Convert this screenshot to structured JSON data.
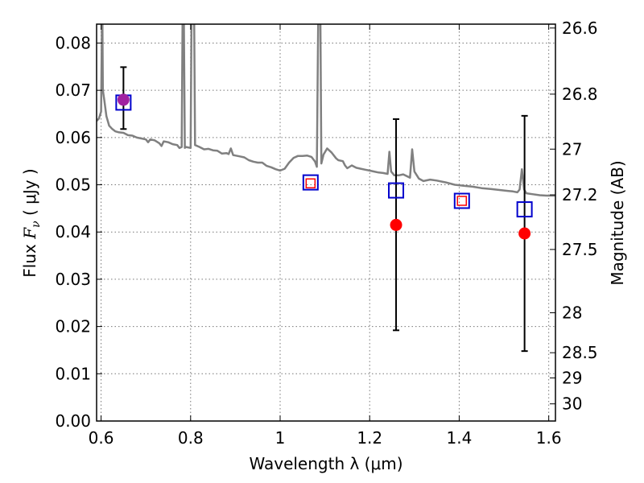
{
  "chart_data": {
    "type": "scatter",
    "xlabel": "Wavelength  λ (μm)",
    "ylabel_prefix": "Flux  ",
    "ylabel_symbol": "F",
    "ylabel_subscript": "ν",
    "ylabel_suffix": "  ( μJy )",
    "y2label": "Magnitude (AB)",
    "xlim": [
      0.59,
      1.615
    ],
    "ylim": [
      0.0,
      0.084
    ],
    "grid": true,
    "x_ticks": [
      0.6,
      0.8,
      1.0,
      1.2,
      1.4,
      1.6
    ],
    "x_tick_labels": [
      "0.6",
      "0.8",
      "1",
      "1.2",
      "1.4",
      "1.6"
    ],
    "y_ticks": [
      0.0,
      0.01,
      0.02,
      0.03,
      0.04,
      0.05,
      0.06,
      0.07,
      0.08
    ],
    "y_tick_labels": [
      "0.00",
      "0.01",
      "0.02",
      "0.03",
      "0.04",
      "0.05",
      "0.06",
      "0.07",
      "0.08"
    ],
    "mag_ticks": [
      26.6,
      26.8,
      27,
      27.2,
      27.5,
      28,
      28.5,
      29,
      30
    ],
    "mag_tick_labels": [
      "26.6",
      "26.8",
      "27",
      "27.2",
      "27.5",
      "28",
      "28.5",
      "29",
      "30"
    ],
    "colors": {
      "model": "#808080",
      "observed": "#ff0000",
      "model_photometry": "#0000cc",
      "errorbar": "#000000",
      "overlap": "#a020a0",
      "grid": "#777777"
    },
    "series": [
      {
        "kind": "line",
        "points": [
          [
            0.59,
            0.0635
          ],
          [
            0.595,
            0.064
          ],
          [
            0.6,
            0.0655
          ],
          [
            0.602,
            0.085
          ],
          [
            0.603,
            0.085
          ],
          [
            0.604,
            0.07
          ],
          [
            0.607,
            0.068
          ],
          [
            0.612,
            0.0645
          ],
          [
            0.618,
            0.0625
          ],
          [
            0.625,
            0.0618
          ],
          [
            0.632,
            0.0613
          ],
          [
            0.64,
            0.0611
          ],
          [
            0.65,
            0.061
          ],
          [
            0.66,
            0.0605
          ],
          [
            0.67,
            0.0604
          ],
          [
            0.68,
            0.06
          ],
          [
            0.69,
            0.0598
          ],
          [
            0.7,
            0.0596
          ],
          [
            0.705,
            0.059
          ],
          [
            0.71,
            0.0596
          ],
          [
            0.72,
            0.0594
          ],
          [
            0.73,
            0.0588
          ],
          [
            0.735,
            0.0582
          ],
          [
            0.74,
            0.0592
          ],
          [
            0.75,
            0.059
          ],
          [
            0.76,
            0.0586
          ],
          [
            0.77,
            0.0584
          ],
          [
            0.775,
            0.0578
          ],
          [
            0.78,
            0.058
          ],
          [
            0.782,
            0.085
          ],
          [
            0.785,
            0.085
          ],
          [
            0.787,
            0.0578
          ],
          [
            0.79,
            0.058
          ],
          [
            0.8,
            0.0578
          ],
          [
            0.802,
            0.085
          ],
          [
            0.808,
            0.085
          ],
          [
            0.81,
            0.0584
          ],
          [
            0.82,
            0.058
          ],
          [
            0.83,
            0.0575
          ],
          [
            0.84,
            0.0576
          ],
          [
            0.85,
            0.0573
          ],
          [
            0.86,
            0.0572
          ],
          [
            0.87,
            0.0566
          ],
          [
            0.88,
            0.0567
          ],
          [
            0.885,
            0.0565
          ],
          [
            0.89,
            0.0577
          ],
          [
            0.895,
            0.0563
          ],
          [
            0.9,
            0.0562
          ],
          [
            0.91,
            0.056
          ],
          [
            0.92,
            0.0558
          ],
          [
            0.93,
            0.0552
          ],
          [
            0.94,
            0.0549
          ],
          [
            0.95,
            0.0547
          ],
          [
            0.96,
            0.0547
          ],
          [
            0.97,
            0.054
          ],
          [
            0.98,
            0.0537
          ],
          [
            0.99,
            0.0533
          ],
          [
            1.0,
            0.053
          ],
          [
            1.01,
            0.0534
          ],
          [
            1.02,
            0.0547
          ],
          [
            1.03,
            0.0557
          ],
          [
            1.04,
            0.0561
          ],
          [
            1.05,
            0.0561
          ],
          [
            1.06,
            0.0562
          ],
          [
            1.07,
            0.0559
          ],
          [
            1.078,
            0.0549
          ],
          [
            1.082,
            0.0538
          ],
          [
            1.085,
            0.085
          ],
          [
            1.09,
            0.085
          ],
          [
            1.092,
            0.0545
          ],
          [
            1.097,
            0.0564
          ],
          [
            1.105,
            0.0577
          ],
          [
            1.115,
            0.0568
          ],
          [
            1.125,
            0.0556
          ],
          [
            1.13,
            0.0552
          ],
          [
            1.14,
            0.055
          ],
          [
            1.145,
            0.0541
          ],
          [
            1.15,
            0.0535
          ],
          [
            1.16,
            0.0541
          ],
          [
            1.17,
            0.0536
          ],
          [
            1.18,
            0.0534
          ],
          [
            1.19,
            0.0532
          ],
          [
            1.2,
            0.053
          ],
          [
            1.21,
            0.0528
          ],
          [
            1.22,
            0.0526
          ],
          [
            1.23,
            0.0525
          ],
          [
            1.24,
            0.0523
          ],
          [
            1.244,
            0.057
          ],
          [
            1.248,
            0.0528
          ],
          [
            1.255,
            0.052
          ],
          [
            1.265,
            0.052
          ],
          [
            1.275,
            0.0522
          ],
          [
            1.29,
            0.0515
          ],
          [
            1.295,
            0.0575
          ],
          [
            1.3,
            0.0528
          ],
          [
            1.31,
            0.0513
          ],
          [
            1.32,
            0.0508
          ],
          [
            1.335,
            0.0511
          ],
          [
            1.35,
            0.0509
          ],
          [
            1.37,
            0.0505
          ],
          [
            1.39,
            0.05
          ],
          [
            1.41,
            0.0498
          ],
          [
            1.43,
            0.0496
          ],
          [
            1.45,
            0.0493
          ],
          [
            1.47,
            0.0491
          ],
          [
            1.49,
            0.0489
          ],
          [
            1.51,
            0.0487
          ],
          [
            1.52,
            0.0486
          ],
          [
            1.53,
            0.0484
          ],
          [
            1.535,
            0.049
          ],
          [
            1.54,
            0.0533
          ],
          [
            1.545,
            0.049
          ],
          [
            1.55,
            0.0482
          ],
          [
            1.565,
            0.048
          ],
          [
            1.58,
            0.0478
          ],
          [
            1.595,
            0.0477
          ],
          [
            1.605,
            0.0477
          ],
          [
            1.615,
            0.0477
          ]
        ]
      },
      {
        "kind": "model_photometry",
        "x": [
          0.65,
          1.068,
          1.259,
          1.406,
          1.546
        ],
        "y": [
          0.0674,
          0.0505,
          0.0488,
          0.0466,
          0.0448
        ]
      },
      {
        "kind": "observed",
        "x": [
          0.65,
          1.068,
          1.259,
          1.406,
          1.546
        ],
        "y": [
          0.068,
          0.0503,
          0.0415,
          0.0466,
          0.0397
        ],
        "yerr_low": [
          0.0618,
          null,
          0.0192,
          null,
          0.0148
        ],
        "yerr_high": [
          0.0749,
          null,
          0.0639,
          null,
          0.0646
        ],
        "style": [
          "dot-purple",
          "square",
          "dot",
          "square",
          "dot"
        ]
      }
    ]
  }
}
